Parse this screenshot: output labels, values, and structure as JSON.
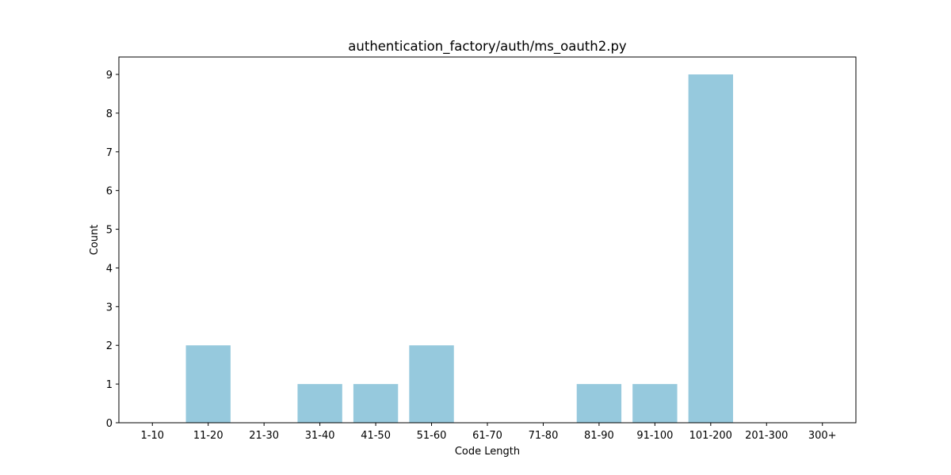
{
  "chart_data": {
    "type": "bar",
    "title": "authentication_factory/auth/ms_oauth2.py",
    "xlabel": "Code Length",
    "ylabel": "Count",
    "categories": [
      "1-10",
      "11-20",
      "21-30",
      "31-40",
      "41-50",
      "51-60",
      "61-70",
      "71-80",
      "81-90",
      "91-100",
      "101-200",
      "201-300",
      "300+"
    ],
    "values": [
      0,
      2,
      0,
      1,
      1,
      2,
      0,
      0,
      1,
      1,
      9,
      0,
      0
    ],
    "ylim": [
      0,
      9.45
    ],
    "yticks": [
      "0",
      "1",
      "2",
      "3",
      "4",
      "5",
      "6",
      "7",
      "8",
      "9"
    ],
    "bar_color": "#96c9dd",
    "grid": false,
    "legend": "none"
  }
}
